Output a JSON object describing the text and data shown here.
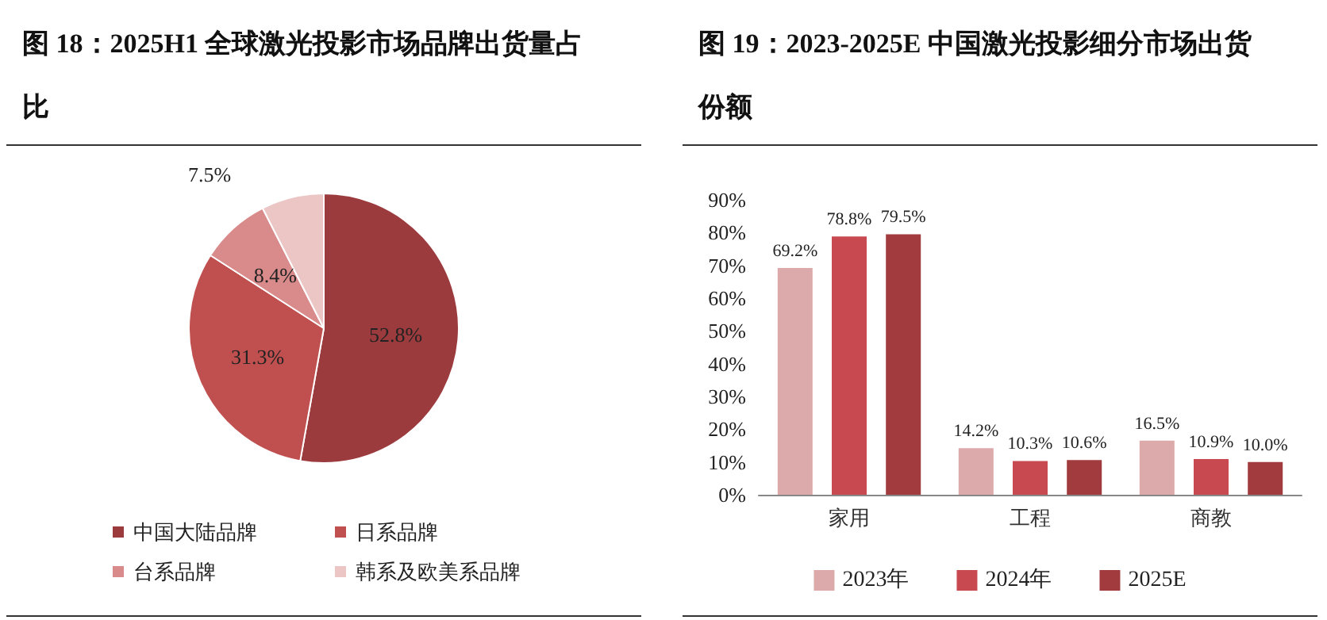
{
  "chart_data": [
    {
      "type": "pie",
      "title": "图 18：2025H1 全球激光投影市场品牌出货量占比",
      "categories": [
        "中国大陆品牌",
        "日系品牌",
        "台系品牌",
        "韩系及欧美系品牌"
      ],
      "values": [
        52.8,
        31.3,
        8.4,
        7.5
      ],
      "colors": [
        "#9b3b3e",
        "#c0504f",
        "#d98b8b",
        "#ebc6c5"
      ],
      "value_labels": [
        "52.8%",
        "31.3%",
        "8.4%",
        "7.5%"
      ],
      "legend": "bottom"
    },
    {
      "type": "bar",
      "title": "图 19：2023-2025E 中国激光投影细分市场出货份额",
      "categories": [
        "家用",
        "工程",
        "商教"
      ],
      "ylim": [
        0,
        90
      ],
      "yticks": [
        {
          "value": 0,
          "label": "0%"
        },
        {
          "value": 10,
          "label": "10%"
        },
        {
          "value": 20,
          "label": "20%"
        },
        {
          "value": 30,
          "label": "30%"
        },
        {
          "value": 40,
          "label": "40%"
        },
        {
          "value": 50,
          "label": "50%"
        },
        {
          "value": 60,
          "label": "60%"
        },
        {
          "value": 70,
          "label": "70%"
        },
        {
          "value": 80,
          "label": "80%"
        },
        {
          "value": 90,
          "label": "90%"
        }
      ],
      "grid": false,
      "legend": "bottom",
      "series": [
        {
          "name": "2023年",
          "color": "#dcaaaa",
          "values": [
            69.2,
            14.2,
            16.5
          ],
          "value_labels": [
            "69.2%",
            "14.2%",
            "16.5%"
          ]
        },
        {
          "name": "2024年",
          "color": "#c84a50",
          "values": [
            78.8,
            10.3,
            10.9
          ],
          "value_labels": [
            "78.8%",
            "10.3%",
            "10.9%"
          ]
        },
        {
          "name": "2025E",
          "color": "#a13b3e",
          "values": [
            79.5,
            10.6,
            10.0
          ],
          "value_labels": [
            "79.5%",
            "10.6%",
            "10.0%"
          ]
        }
      ]
    }
  ]
}
